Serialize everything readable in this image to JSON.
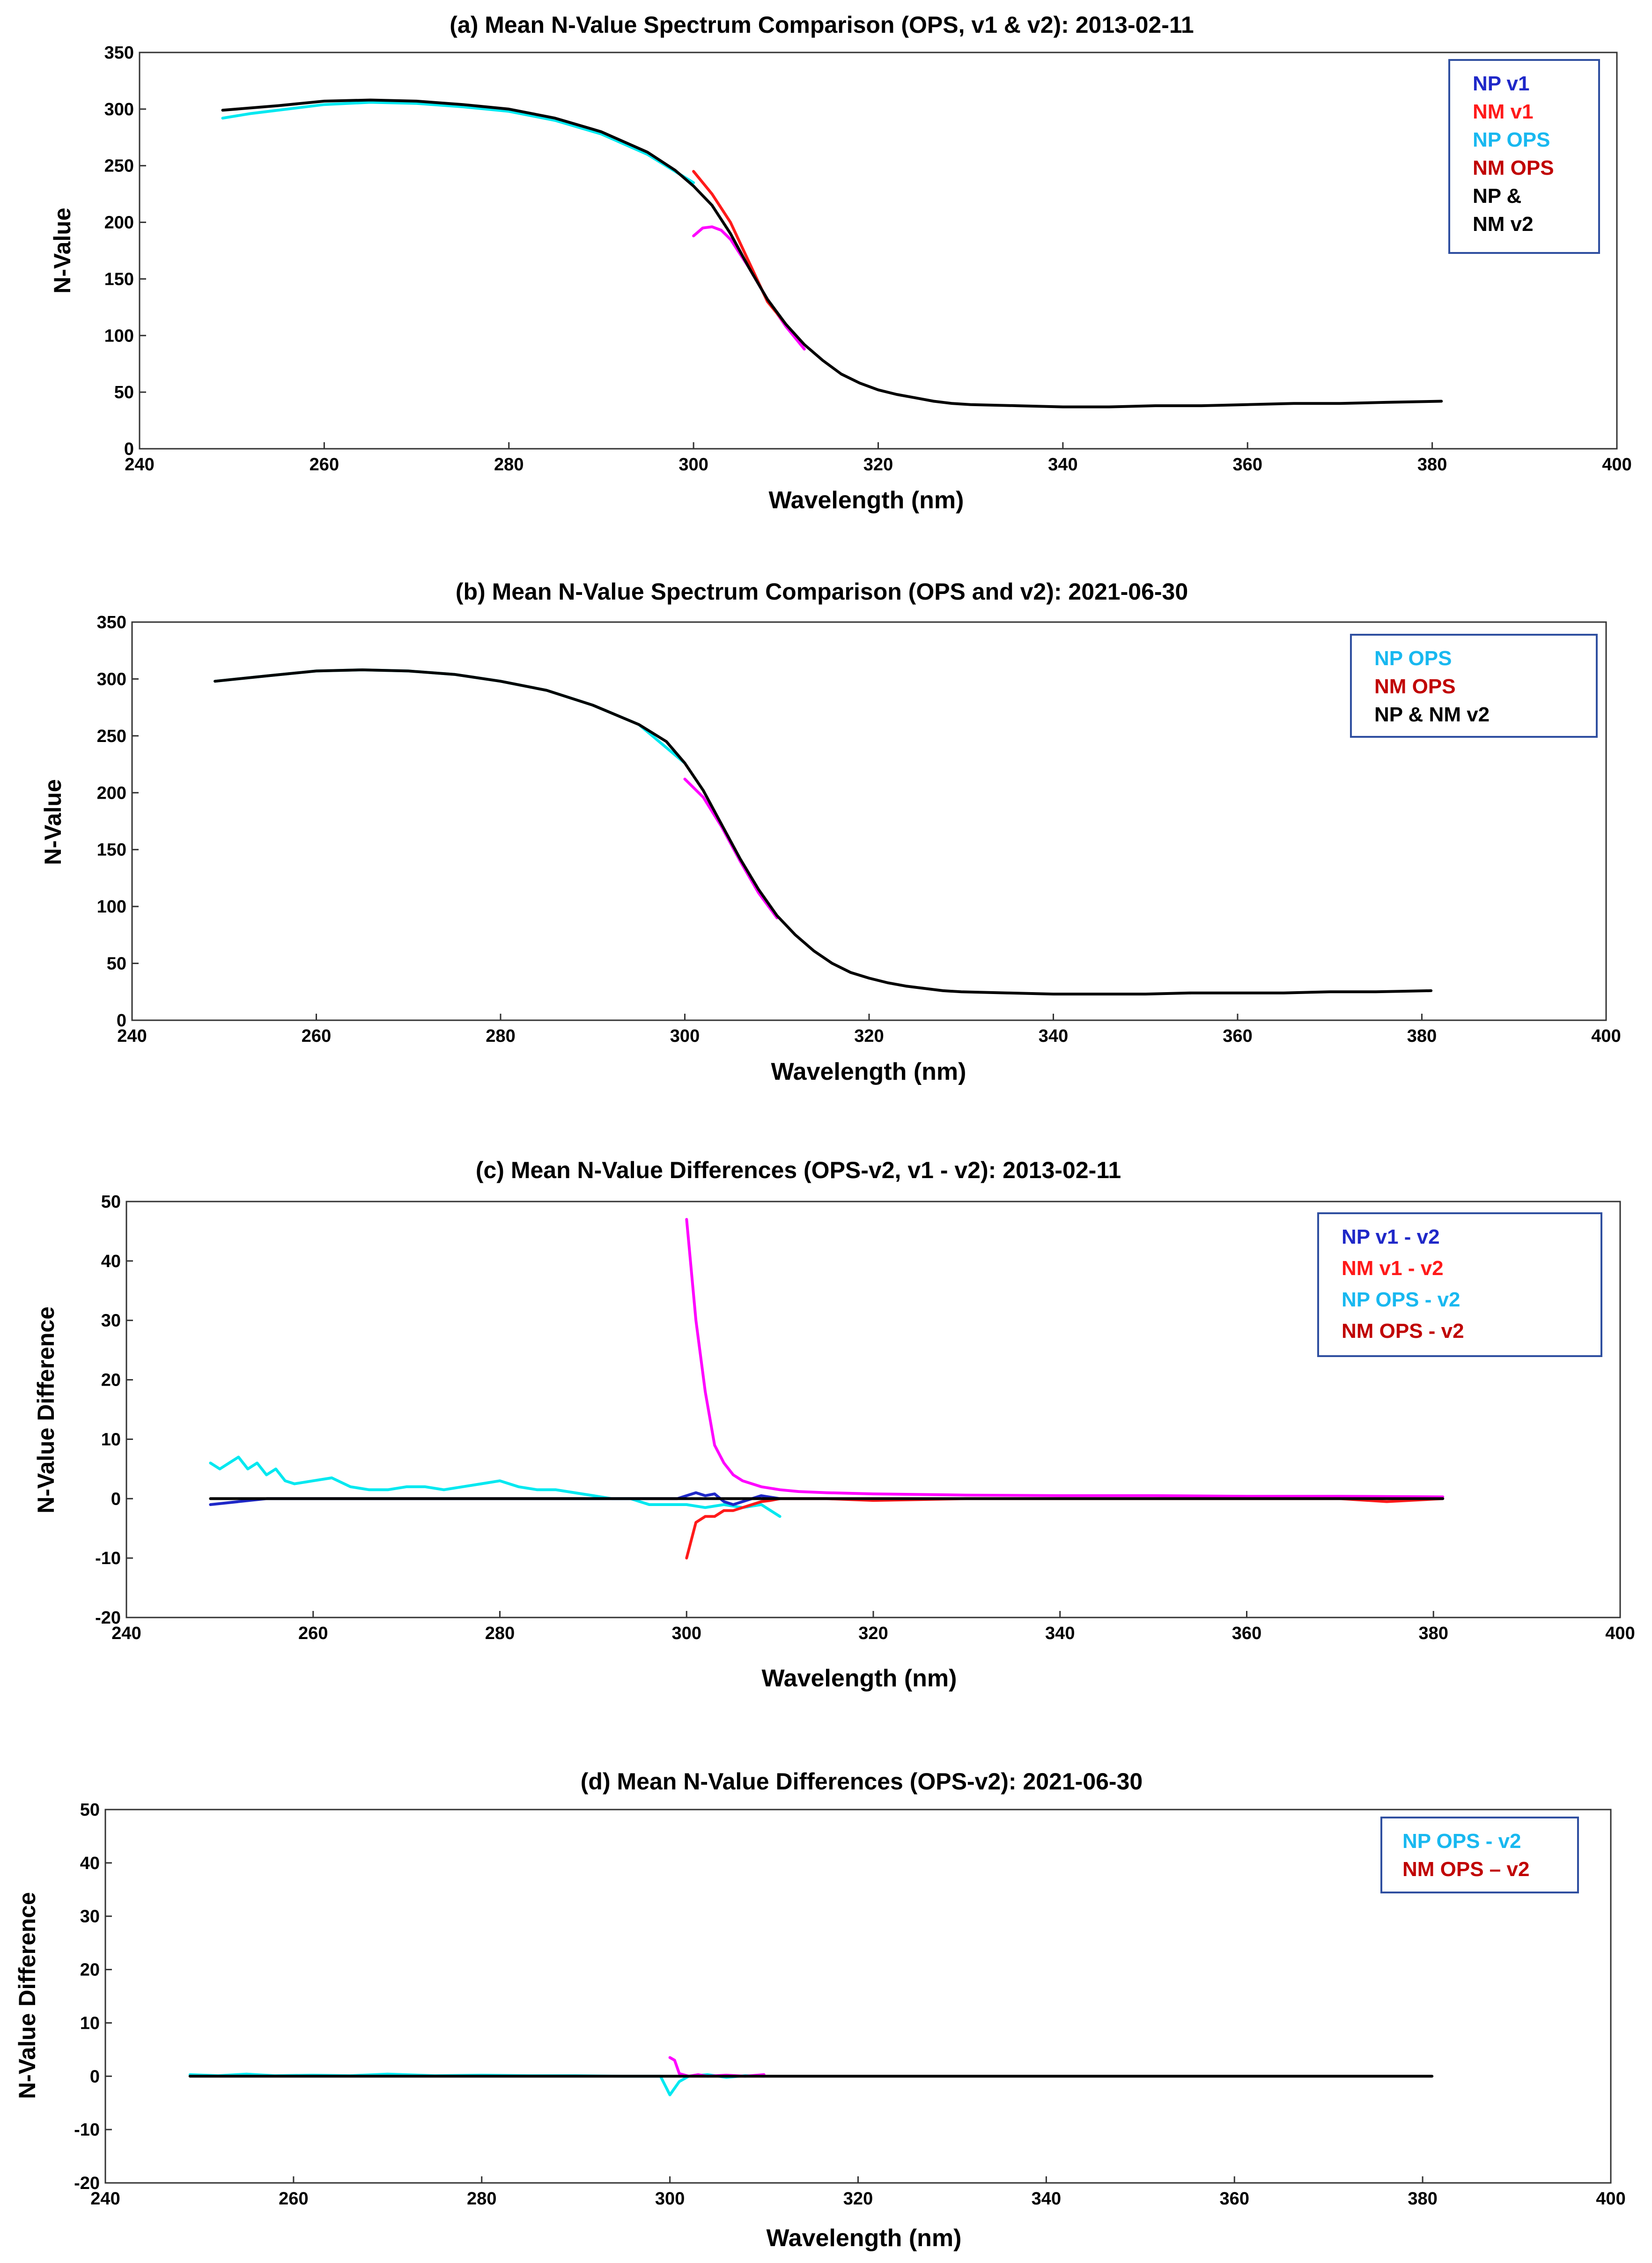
{
  "chart_data": [
    {
      "type": "line",
      "title": "(a) Mean N-Value Spectrum Comparison (OPS, v1 & v2): 2013-02-11",
      "xlabel": "Wavelength (nm)",
      "ylabel": "N-Value",
      "xlim": [
        240,
        400
      ],
      "ylim": [
        0,
        350
      ],
      "xticks": [
        240,
        260,
        280,
        300,
        320,
        340,
        360,
        380,
        400
      ],
      "yticks": [
        0,
        50,
        100,
        150,
        200,
        250,
        300,
        350
      ],
      "legend_position": "top-right",
      "legend": [
        {
          "label": "NP v1",
          "color": "#1f28c8"
        },
        {
          "label": "NM v1",
          "color": "#ff1a1a"
        },
        {
          "label": "NP OPS",
          "color": "#18b8f0"
        },
        {
          "label": "NM OPS",
          "color": "#c00000"
        },
        {
          "label": "NP &",
          "color": "#000000"
        },
        {
          "label": "NM v2",
          "color": "#000000"
        }
      ],
      "series": [
        {
          "name": "NP OPS",
          "color": "#00e8f0",
          "x": [
            249,
            252,
            256,
            260,
            265,
            270,
            275,
            280,
            285,
            290,
            295,
            300
          ],
          "y": [
            292,
            296,
            300,
            304,
            306,
            305,
            302,
            298,
            290,
            278,
            260,
            235
          ]
        },
        {
          "name": "NM OPS",
          "color": "#ff00ff",
          "x": [
            300,
            301,
            302,
            303,
            304,
            306,
            308,
            310,
            312
          ],
          "y": [
            188,
            195,
            196,
            193,
            185,
            160,
            132,
            108,
            88
          ]
        },
        {
          "name": "NM v1",
          "color": "#ff1a1a",
          "x": [
            300,
            302,
            304,
            306,
            308,
            310
          ],
          "y": [
            245,
            225,
            200,
            165,
            130,
            110
          ]
        },
        {
          "name": "NP & NM v2",
          "color": "#000000",
          "x": [
            249,
            255,
            260,
            265,
            270,
            275,
            280,
            285,
            290,
            295,
            298,
            300,
            302,
            304,
            306,
            308,
            310,
            312,
            314,
            316,
            318,
            320,
            322,
            324,
            326,
            328,
            330,
            335,
            340,
            345,
            350,
            355,
            360,
            365,
            370,
            375,
            381
          ],
          "y": [
            299,
            303,
            307,
            308,
            307,
            304,
            300,
            292,
            280,
            262,
            246,
            232,
            215,
            190,
            160,
            132,
            110,
            92,
            78,
            66,
            58,
            52,
            48,
            45,
            42,
            40,
            39,
            38,
            37,
            37,
            38,
            38,
            39,
            40,
            40,
            41,
            42
          ]
        }
      ]
    },
    {
      "type": "line",
      "title": "(b) Mean N-Value Spectrum Comparison (OPS and v2): 2021-06-30",
      "xlabel": "Wavelength (nm)",
      "ylabel": "N-Value",
      "xlim": [
        240,
        400
      ],
      "ylim": [
        0,
        350
      ],
      "xticks": [
        240,
        260,
        280,
        300,
        320,
        340,
        360,
        380,
        400
      ],
      "yticks": [
        0,
        50,
        100,
        150,
        200,
        250,
        300,
        350
      ],
      "legend_position": "top-right",
      "legend": [
        {
          "label": "NP OPS",
          "color": "#18b8f0"
        },
        {
          "label": "NM OPS",
          "color": "#c00000"
        },
        {
          "label": "NP & NM v2",
          "color": "#000000"
        }
      ],
      "series": [
        {
          "name": "NP OPS",
          "color": "#00e8f0",
          "x": [
            249,
            255,
            260,
            265,
            270,
            275,
            280,
            285,
            290,
            295,
            300
          ],
          "y": [
            298,
            303,
            307,
            308,
            307,
            304,
            298,
            290,
            277,
            260,
            226
          ]
        },
        {
          "name": "NM OPS",
          "color": "#ff00ff",
          "x": [
            300,
            302,
            304,
            306,
            308,
            310
          ],
          "y": [
            212,
            196,
            170,
            140,
            112,
            90
          ]
        },
        {
          "name": "NP & NM v2",
          "color": "#000000",
          "x": [
            249,
            255,
            260,
            265,
            270,
            275,
            280,
            285,
            290,
            295,
            298,
            300,
            302,
            304,
            306,
            308,
            310,
            312,
            314,
            316,
            318,
            320,
            322,
            324,
            326,
            328,
            330,
            335,
            340,
            345,
            350,
            355,
            360,
            365,
            370,
            375,
            381
          ],
          "y": [
            298,
            303,
            307,
            308,
            307,
            304,
            298,
            290,
            277,
            260,
            245,
            226,
            202,
            172,
            142,
            115,
            92,
            75,
            61,
            50,
            42,
            37,
            33,
            30,
            28,
            26,
            25,
            24,
            23,
            23,
            23,
            24,
            24,
            24,
            25,
            25,
            26
          ]
        }
      ]
    },
    {
      "type": "line",
      "title": "(c) Mean N-Value Differences (OPS-v2, v1 - v2): 2013-02-11",
      "xlabel": "Wavelength (nm)",
      "ylabel": "N-Value Difference",
      "xlim": [
        240,
        400
      ],
      "ylim": [
        -20,
        50
      ],
      "xticks": [
        240,
        260,
        280,
        300,
        320,
        340,
        360,
        380,
        400
      ],
      "yticks": [
        -20,
        -10,
        0,
        10,
        20,
        30,
        40,
        50
      ],
      "legend_position": "top-right",
      "legend": [
        {
          "label": "NP v1 - v2",
          "color": "#1f28c8"
        },
        {
          "label": "NM v1 - v2",
          "color": "#ff1a1a"
        },
        {
          "label": "NP OPS - v2",
          "color": "#18b8f0"
        },
        {
          "label": "NM OPS - v2",
          "color": "#c00000"
        }
      ],
      "series": [
        {
          "name": "NP OPS - v2",
          "color": "#00e8f0",
          "x": [
            249,
            250,
            251,
            252,
            253,
            254,
            255,
            256,
            257,
            258,
            260,
            262,
            264,
            266,
            268,
            270,
            272,
            274,
            276,
            278,
            280,
            282,
            284,
            286,
            288,
            290,
            292,
            294,
            296,
            298,
            300,
            302,
            304,
            306,
            308,
            310
          ],
          "y": [
            6,
            5,
            6,
            7,
            5,
            6,
            4,
            5,
            3,
            2.5,
            3,
            3.5,
            2,
            1.5,
            1.5,
            2,
            2,
            1.5,
            2,
            2.5,
            3,
            2,
            1.5,
            1.5,
            1,
            0.5,
            0,
            0,
            -1,
            -1,
            -1,
            -1.5,
            -1,
            -1.5,
            -1,
            -3
          ]
        },
        {
          "name": "NM OPS - v2",
          "color": "#ff00ff",
          "x": [
            300,
            301,
            302,
            303,
            304,
            305,
            306,
            308,
            310,
            312,
            315,
            320,
            330,
            340,
            350,
            360,
            370,
            381
          ],
          "y": [
            47,
            30,
            18,
            9,
            6,
            4,
            3,
            2,
            1.5,
            1.2,
            1,
            0.8,
            0.6,
            0.5,
            0.5,
            0.4,
            0.4,
            0.3
          ]
        },
        {
          "name": "NM v1 - v2",
          "color": "#ff1a1a",
          "x": [
            300,
            301,
            302,
            303,
            304,
            305,
            306,
            307,
            308,
            309,
            310,
            315,
            320,
            330,
            340,
            350,
            360,
            370,
            375,
            381
          ],
          "y": [
            -10,
            -4,
            -3,
            -3,
            -2,
            -2,
            -1.5,
            -1,
            -0.5,
            -0.3,
            0,
            0,
            -0.3,
            0,
            0,
            0,
            0,
            0,
            -0.5,
            0
          ]
        },
        {
          "name": "NP v1 - v2",
          "color": "#1f28c8",
          "x": [
            249,
            255,
            260,
            270,
            280,
            290,
            299,
            300,
            301,
            302,
            303,
            304,
            305,
            306,
            308,
            310
          ],
          "y": [
            -1,
            0,
            0,
            0,
            0,
            0,
            0,
            0.5,
            1,
            0.5,
            0.8,
            -0.5,
            -1,
            -0.5,
            0.5,
            0
          ]
        },
        {
          "name": "Zero line",
          "color": "#000000",
          "x": [
            249,
            381
          ],
          "y": [
            0,
            0
          ]
        }
      ]
    },
    {
      "type": "line",
      "title": "(d) Mean N-Value Differences (OPS-v2): 2021-06-30",
      "xlabel": "Wavelength (nm)",
      "ylabel": "N-Value Difference",
      "xlim": [
        240,
        400
      ],
      "ylim": [
        -20,
        50
      ],
      "xticks": [
        240,
        260,
        280,
        300,
        320,
        340,
        360,
        380,
        400
      ],
      "yticks": [
        -20,
        -10,
        0,
        10,
        20,
        30,
        40,
        50
      ],
      "legend_position": "top-right",
      "legend": [
        {
          "label": "NP OPS - v2",
          "color": "#18b8f0"
        },
        {
          "label": "NM OPS – v2",
          "color": "#c00000"
        }
      ],
      "series": [
        {
          "name": "NP OPS - v2",
          "color": "#00e8f0",
          "x": [
            249,
            252,
            255,
            258,
            262,
            266,
            270,
            275,
            280,
            285,
            290,
            295,
            299,
            300,
            301,
            302,
            304,
            306,
            308,
            310
          ],
          "y": [
            0.3,
            0.1,
            0.4,
            0.1,
            0.2,
            0.1,
            0.4,
            0.1,
            0.2,
            0.1,
            0.1,
            0,
            0,
            -3.5,
            -1,
            0,
            0.3,
            -0.2,
            0.1,
            0
          ]
        },
        {
          "name": "NM OPS - v2",
          "color": "#ff00ff",
          "x": [
            300,
            300.5,
            301,
            302,
            303,
            304,
            306,
            308,
            310
          ],
          "y": [
            3.5,
            3,
            0.5,
            0,
            0.3,
            0,
            0.2,
            0,
            0.3
          ]
        },
        {
          "name": "Zero line",
          "color": "#000000",
          "x": [
            249,
            381
          ],
          "y": [
            0,
            0
          ]
        }
      ]
    }
  ]
}
